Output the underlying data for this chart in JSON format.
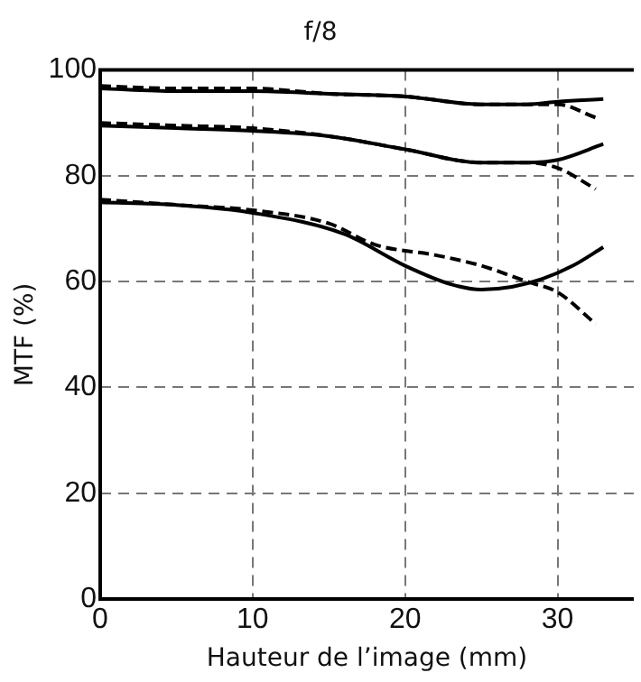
{
  "chart_data": {
    "type": "line",
    "title": "f/8",
    "xlabel": "Hauteur de l’image (mm)",
    "ylabel": "MTF (%)",
    "xlim": [
      0,
      35
    ],
    "xticks": [
      0,
      10,
      20,
      30
    ],
    "ylim": [
      0,
      100
    ],
    "yticks": [
      0,
      20,
      40,
      60,
      80,
      100
    ],
    "grid": true,
    "legend": false,
    "marker": "none",
    "series": [
      {
        "color": "#000000",
        "line_style": "solid",
        "x": [
          0,
          5,
          10,
          15,
          20,
          25,
          28,
          30,
          33
        ],
        "values": [
          96.5,
          96,
          96,
          95.5,
          95,
          93.5,
          93.5,
          94,
          94.5
        ]
      },
      {
        "color": "#000000",
        "line_style": "dashed",
        "x": [
          0,
          5,
          10,
          15,
          20,
          25,
          28,
          30,
          32.5
        ],
        "values": [
          97,
          96.5,
          96.5,
          95.5,
          95,
          93.5,
          93.5,
          93.5,
          91
        ]
      },
      {
        "color": "#000000",
        "line_style": "solid",
        "x": [
          0,
          5,
          10,
          15,
          20,
          25,
          28,
          30,
          33
        ],
        "values": [
          89.5,
          89,
          88.5,
          87.5,
          85,
          82.5,
          82.5,
          83,
          86
        ]
      },
      {
        "color": "#000000",
        "line_style": "dashed",
        "x": [
          0,
          5,
          10,
          15,
          20,
          25,
          28,
          30,
          32.5
        ],
        "values": [
          90,
          89.5,
          89,
          87.5,
          85,
          82.5,
          82.5,
          81.5,
          77.5
        ]
      },
      {
        "color": "#000000",
        "line_style": "solid",
        "x": [
          0,
          5,
          10,
          16,
          20,
          23,
          25,
          27,
          29,
          31,
          33
        ],
        "values": [
          75,
          74.5,
          73,
          69,
          63,
          59.5,
          58.5,
          59,
          60.5,
          63,
          66.5
        ]
      },
      {
        "color": "#000000",
        "line_style": "dashed",
        "x": [
          0,
          5,
          10,
          15,
          18,
          22,
          25,
          28,
          30,
          32.5
        ],
        "values": [
          75.5,
          74.5,
          73.5,
          71,
          67,
          65,
          63,
          60,
          58,
          52
        ]
      }
    ]
  }
}
